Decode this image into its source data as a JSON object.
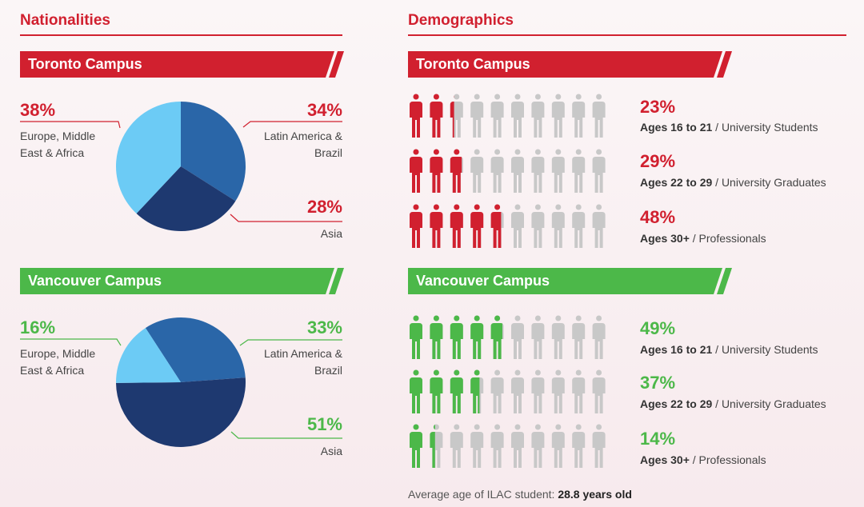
{
  "nationalities": {
    "title": "Nationalities",
    "toronto": {
      "campus": "Toronto Campus",
      "chart_title": "Toronto Campus",
      "slices": [
        {
          "pct": "38%",
          "value": 38,
          "label": "Europe, Middle East & Africa"
        },
        {
          "pct": "34%",
          "value": 34,
          "label": "Latin America & Brazil"
        },
        {
          "pct": "28%",
          "value": 28,
          "label": "Asia"
        }
      ]
    },
    "vancouver": {
      "campus": "Vancouver Campus",
      "chart_title": "Vancouver Campus",
      "slices": [
        {
          "pct": "16%",
          "value": 16,
          "label": "Europe, Middle East & Africa"
        },
        {
          "pct": "33%",
          "value": 33,
          "label": "Latin America & Brazil"
        },
        {
          "pct": "51%",
          "value": 51,
          "label": "Asia"
        }
      ]
    }
  },
  "demographics": {
    "title": "Demographics",
    "toronto": {
      "campus": "Toronto Campus",
      "rows": [
        {
          "pct": "23%",
          "value": 23,
          "age": "Ages 16 to 21",
          "group": "University Students"
        },
        {
          "pct": "29%",
          "value": 29,
          "age": "Ages 22 to 29",
          "group": "University Graduates"
        },
        {
          "pct": "48%",
          "value": 48,
          "age": "Ages 30+",
          "group": "Professionals"
        }
      ]
    },
    "vancouver": {
      "campus": "Vancouver Campus",
      "rows": [
        {
          "pct": "49%",
          "value": 49,
          "age": "Ages 16 to 21",
          "group": "University Students"
        },
        {
          "pct": "37%",
          "value": 37,
          "age": "Ages 22 to 29",
          "group": "University Graduates"
        },
        {
          "pct": "14%",
          "value": 14,
          "age": "Ages 30+",
          "group": "Professionals"
        }
      ]
    },
    "separator": " / ",
    "footer_text": "Average age of ILAC student:",
    "footer_value": "28.8 years old"
  },
  "colors": {
    "red": "#d1202f",
    "green": "#4cb849",
    "grey": "#c8c8c8",
    "pie_light": "#6ccbf5",
    "pie_mid": "#2a66a8",
    "pie_dark": "#1e3970"
  },
  "chart_data": [
    {
      "type": "pie",
      "title": "Toronto Campus",
      "categories": [
        "Europe, Middle East & Africa",
        "Latin America & Brazil",
        "Asia"
      ],
      "values": [
        38,
        34,
        28
      ]
    },
    {
      "type": "pie",
      "title": "Vancouver Campus",
      "categories": [
        "Europe, Middle East & Africa",
        "Latin America & Brazil",
        "Asia"
      ],
      "values": [
        16,
        33,
        51
      ]
    },
    {
      "type": "bar",
      "title": "Toronto Campus Demographics",
      "categories": [
        "Ages 16 to 21",
        "Ages 22 to 29",
        "Ages 30+"
      ],
      "values": [
        23,
        29,
        48
      ]
    },
    {
      "type": "bar",
      "title": "Vancouver Campus Demographics",
      "categories": [
        "Ages 16 to 21",
        "Ages 22 to 29",
        "Ages 30+"
      ],
      "values": [
        49,
        37,
        14
      ]
    }
  ]
}
